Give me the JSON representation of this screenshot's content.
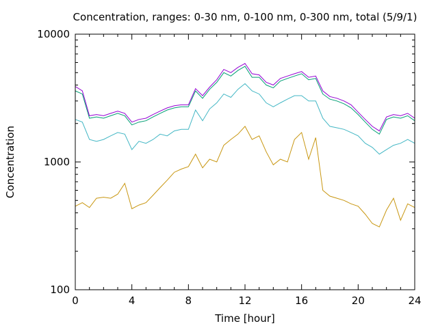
{
  "chart_data": {
    "type": "line",
    "title": "Concentration, ranges: 0-30 nm, 0-100 nm, 0-300 nm, total (5/9/1)",
    "xlabel": "Time [hour]",
    "ylabel": "Concentration",
    "xlim": [
      0,
      24
    ],
    "ylim": [
      100,
      10000
    ],
    "y_scale": "log",
    "grid": false,
    "legend": "none",
    "xticks": [
      0,
      4,
      8,
      12,
      16,
      20,
      24
    ],
    "xtick_labels": [
      "0",
      "4",
      "8",
      "12",
      "16",
      "20",
      "24"
    ],
    "yticks": [
      100,
      1000,
      10000
    ],
    "ytick_labels": [
      "100",
      "1000",
      "10000"
    ],
    "x": [
      0,
      0.5,
      1,
      1.5,
      2,
      2.5,
      3,
      3.5,
      4,
      4.5,
      5,
      5.5,
      6,
      6.5,
      7,
      7.5,
      8,
      8.5,
      9,
      9.5,
      10,
      10.5,
      11,
      11.5,
      12,
      12.5,
      13,
      13.5,
      14,
      14.5,
      15,
      15.5,
      16,
      16.5,
      17,
      17.5,
      18,
      18.5,
      19,
      19.5,
      20,
      20.5,
      21,
      21.5,
      22,
      22.5,
      23,
      23.5,
      24
    ],
    "series": [
      {
        "color": "#c89610",
        "values": [
          450,
          480,
          440,
          520,
          530,
          520,
          560,
          680,
          430,
          460,
          480,
          550,
          630,
          720,
          830,
          880,
          920,
          1150,
          900,
          1050,
          1000,
          1350,
          1500,
          1650,
          1900,
          1500,
          1600,
          1200,
          950,
          1050,
          1000,
          1500,
          1700,
          1050,
          1550,
          600,
          540,
          520,
          500,
          470,
          450,
          390,
          330,
          310,
          420,
          520,
          350,
          470,
          440
        ]
      },
      {
        "color": "#41b6c4",
        "values": [
          2150,
          2050,
          1500,
          1450,
          1500,
          1600,
          1700,
          1650,
          1250,
          1450,
          1400,
          1500,
          1650,
          1600,
          1750,
          1800,
          1800,
          2550,
          2100,
          2600,
          2900,
          3400,
          3200,
          3700,
          4100,
          3600,
          3400,
          2900,
          2700,
          2900,
          3100,
          3300,
          3300,
          3000,
          3000,
          2200,
          1900,
          1850,
          1800,
          1700,
          1600,
          1400,
          1300,
          1150,
          1250,
          1350,
          1400,
          1500,
          1400
        ]
      },
      {
        "color": "#009e73",
        "values": [
          3600,
          3400,
          2200,
          2250,
          2200,
          2300,
          2400,
          2300,
          1950,
          2050,
          2100,
          2250,
          2400,
          2550,
          2650,
          2700,
          2700,
          3600,
          3150,
          3700,
          4200,
          5000,
          4700,
          5200,
          5600,
          4600,
          4600,
          4000,
          3800,
          4300,
          4500,
          4700,
          4900,
          4400,
          4500,
          3400,
          3100,
          3000,
          2850,
          2650,
          2350,
          2050,
          1800,
          1650,
          2150,
          2250,
          2200,
          2300,
          2100
        ]
      },
      {
        "color": "#9400d3",
        "values": [
          3900,
          3600,
          2300,
          2350,
          2300,
          2400,
          2500,
          2400,
          2050,
          2150,
          2200,
          2350,
          2500,
          2650,
          2750,
          2800,
          2800,
          3750,
          3300,
          3850,
          4400,
          5300,
          5000,
          5500,
          5900,
          4900,
          4800,
          4200,
          4000,
          4500,
          4700,
          4900,
          5100,
          4600,
          4700,
          3600,
          3250,
          3150,
          3000,
          2800,
          2450,
          2150,
          1900,
          1750,
          2250,
          2350,
          2300,
          2400,
          2200
        ]
      }
    ]
  }
}
